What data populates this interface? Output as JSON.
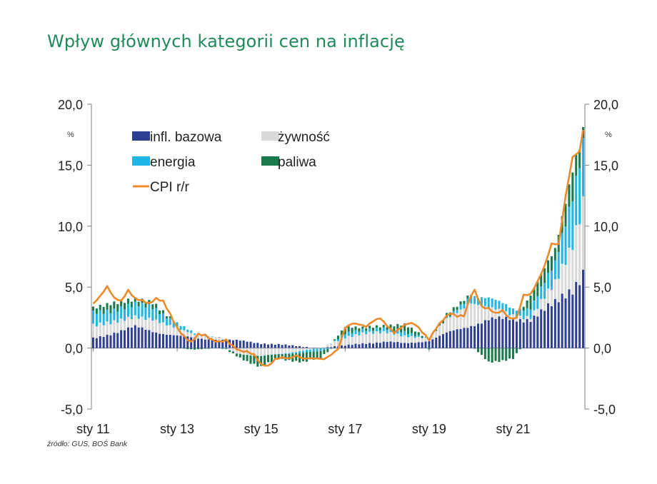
{
  "title": "Wpływ głównych kategorii cen na inflację",
  "source": "źródło: GUS, BOŚ Bank",
  "colors": {
    "core": "#2e3f94",
    "food": "#d9d9d9",
    "energy": "#1fb6e6",
    "fuel": "#1b7a4c",
    "cpi": "#ec8a2c",
    "axis": "#7f7f7f",
    "title": "#1f8a5a"
  },
  "chart_data": {
    "type": "bar",
    "stacked": true,
    "ylim": [
      -5,
      20
    ],
    "yticks": [
      "20,0",
      "15,0",
      "10,0",
      "5,0",
      "0,0",
      "-5,0"
    ],
    "ytick_values": [
      20,
      15,
      10,
      5,
      0,
      -5
    ],
    "yunit_left": "%",
    "yunit_right": "%",
    "xtick_labels": [
      "sty 11",
      "sty 13",
      "sty 15",
      "sty 17",
      "sty 19",
      "sty 21"
    ],
    "x_start": "2011-01",
    "x_end": "2022-09",
    "legend": {
      "core": "infl. bazowa",
      "food": "żywność",
      "energy": "energia",
      "fuel": "paliwa",
      "cpi": "CPI r/r"
    },
    "cpi_series": [
      [
        "2011-01",
        3.6
      ],
      [
        "2011-03",
        4.2
      ],
      [
        "2011-05",
        5.0
      ],
      [
        "2011-07",
        4.1
      ],
      [
        "2011-09",
        3.9
      ],
      [
        "2011-11",
        4.8
      ],
      [
        "2012-01",
        4.1
      ],
      [
        "2012-03",
        3.9
      ],
      [
        "2012-05",
        3.6
      ],
      [
        "2012-07",
        4.0
      ],
      [
        "2012-09",
        3.8
      ],
      [
        "2012-11",
        2.8
      ],
      [
        "2013-01",
        1.7
      ],
      [
        "2013-03",
        1.0
      ],
      [
        "2013-05",
        0.5
      ],
      [
        "2013-07",
        1.1
      ],
      [
        "2013-09",
        1.0
      ],
      [
        "2013-11",
        0.6
      ],
      [
        "2014-01",
        0.5
      ],
      [
        "2014-03",
        0.7
      ],
      [
        "2014-05",
        0.2
      ],
      [
        "2014-07",
        -0.2
      ],
      [
        "2014-09",
        -0.3
      ],
      [
        "2014-11",
        -0.6
      ],
      [
        "2015-01",
        -1.4
      ],
      [
        "2015-03",
        -1.5
      ],
      [
        "2015-05",
        -0.9
      ],
      [
        "2015-07",
        -0.7
      ],
      [
        "2015-09",
        -0.8
      ],
      [
        "2015-11",
        -0.6
      ],
      [
        "2016-01",
        -0.9
      ],
      [
        "2016-03",
        -0.9
      ],
      [
        "2016-05",
        -0.9
      ],
      [
        "2016-07",
        -0.9
      ],
      [
        "2016-09",
        -0.5
      ],
      [
        "2016-11",
        0.0
      ],
      [
        "2017-01",
        1.7
      ],
      [
        "2017-03",
        2.0
      ],
      [
        "2017-05",
        1.9
      ],
      [
        "2017-07",
        1.7
      ],
      [
        "2017-09",
        2.2
      ],
      [
        "2017-11",
        2.5
      ],
      [
        "2018-01",
        1.9
      ],
      [
        "2018-03",
        1.3
      ],
      [
        "2018-05",
        1.7
      ],
      [
        "2018-07",
        2.0
      ],
      [
        "2018-09",
        1.9
      ],
      [
        "2018-11",
        1.3
      ],
      [
        "2019-01",
        0.7
      ],
      [
        "2019-03",
        1.7
      ],
      [
        "2019-05",
        2.4
      ],
      [
        "2019-07",
        2.9
      ],
      [
        "2019-09",
        2.6
      ],
      [
        "2019-11",
        2.6
      ],
      [
        "2020-01",
        4.3
      ],
      [
        "2020-02",
        4.7
      ],
      [
        "2020-04",
        3.4
      ],
      [
        "2020-06",
        3.3
      ],
      [
        "2020-08",
        2.9
      ],
      [
        "2020-10",
        3.1
      ],
      [
        "2020-12",
        2.4
      ],
      [
        "2021-02",
        2.4
      ],
      [
        "2021-04",
        4.3
      ],
      [
        "2021-06",
        4.4
      ],
      [
        "2021-08",
        5.5
      ],
      [
        "2021-10",
        6.8
      ],
      [
        "2021-12",
        8.6
      ],
      [
        "2022-02",
        8.5
      ],
      [
        "2022-04",
        12.4
      ],
      [
        "2022-06",
        15.6
      ],
      [
        "2022-08",
        16.1
      ],
      [
        "2022-09",
        17.9
      ]
    ],
    "component_series": {
      "core": [
        [
          "2011-01",
          0.8
        ],
        [
          "2011-06",
          1.2
        ],
        [
          "2012-01",
          1.7
        ],
        [
          "2012-06",
          1.4
        ],
        [
          "2013-01",
          1.0
        ],
        [
          "2013-06",
          0.8
        ],
        [
          "2014-01",
          0.7
        ],
        [
          "2014-06",
          0.6
        ],
        [
          "2015-01",
          0.4
        ],
        [
          "2015-06",
          0.3
        ],
        [
          "2016-01",
          0.1
        ],
        [
          "2016-06",
          0.0
        ],
        [
          "2017-01",
          0.2
        ],
        [
          "2017-06",
          0.4
        ],
        [
          "2018-01",
          0.5
        ],
        [
          "2018-06",
          0.4
        ],
        [
          "2019-01",
          0.6
        ],
        [
          "2019-06",
          1.2
        ],
        [
          "2020-01",
          1.9
        ],
        [
          "2020-06",
          2.3
        ],
        [
          "2021-01",
          2.4
        ],
        [
          "2021-06",
          2.4
        ],
        [
          "2022-01",
          3.6
        ],
        [
          "2022-06",
          5.0
        ],
        [
          "2022-09",
          6.3
        ]
      ],
      "food": [
        [
          "2011-01",
          1.1
        ],
        [
          "2011-06",
          0.9
        ],
        [
          "2012-01",
          0.8
        ],
        [
          "2012-06",
          1.0
        ],
        [
          "2013-01",
          0.6
        ],
        [
          "2013-06",
          0.3
        ],
        [
          "2014-01",
          0.2
        ],
        [
          "2014-06",
          -0.4
        ],
        [
          "2015-01",
          -0.7
        ],
        [
          "2015-06",
          -0.5
        ],
        [
          "2016-01",
          -0.2
        ],
        [
          "2016-06",
          0.0
        ],
        [
          "2017-01",
          0.7
        ],
        [
          "2017-06",
          0.8
        ],
        [
          "2018-01",
          0.8
        ],
        [
          "2018-06",
          0.6
        ],
        [
          "2019-01",
          0.2
        ],
        [
          "2019-06",
          1.2
        ],
        [
          "2020-01",
          1.8
        ],
        [
          "2020-06",
          1.0
        ],
        [
          "2021-01",
          0.3
        ],
        [
          "2021-06",
          0.2
        ],
        [
          "2022-01",
          1.7
        ],
        [
          "2022-06",
          3.6
        ],
        [
          "2022-09",
          5.5
        ]
      ],
      "energy": [
        [
          "2011-01",
          1.0
        ],
        [
          "2011-06",
          1.0
        ],
        [
          "2012-01",
          1.0
        ],
        [
          "2012-06",
          1.0
        ],
        [
          "2013-01",
          0.4
        ],
        [
          "2013-06",
          0.1
        ],
        [
          "2014-01",
          0.0
        ],
        [
          "2014-06",
          0.0
        ],
        [
          "2015-01",
          0.0
        ],
        [
          "2015-06",
          0.0
        ],
        [
          "2016-01",
          -0.2
        ],
        [
          "2016-06",
          -0.2
        ],
        [
          "2017-01",
          0.3
        ],
        [
          "2017-06",
          0.3
        ],
        [
          "2018-01",
          0.3
        ],
        [
          "2018-06",
          0.3
        ],
        [
          "2019-01",
          0.0
        ],
        [
          "2019-06",
          0.0
        ],
        [
          "2020-01",
          0.6
        ],
        [
          "2020-06",
          0.8
        ],
        [
          "2021-01",
          0.5
        ],
        [
          "2021-06",
          0.8
        ],
        [
          "2022-01",
          1.5
        ],
        [
          "2022-06",
          4.0
        ],
        [
          "2022-09",
          5.2
        ]
      ],
      "fuel": [
        [
          "2011-01",
          0.4
        ],
        [
          "2011-06",
          0.6
        ],
        [
          "2012-01",
          0.4
        ],
        [
          "2012-06",
          0.4
        ],
        [
          "2013-01",
          0.0
        ],
        [
          "2013-06",
          -0.1
        ],
        [
          "2014-01",
          0.0
        ],
        [
          "2014-06",
          -0.2
        ],
        [
          "2015-01",
          -0.9
        ],
        [
          "2015-06",
          -0.4
        ],
        [
          "2016-01",
          -0.7
        ],
        [
          "2016-06",
          -0.6
        ],
        [
          "2017-01",
          0.6
        ],
        [
          "2017-06",
          0.2
        ],
        [
          "2018-01",
          0.2
        ],
        [
          "2018-06",
          0.7
        ],
        [
          "2019-01",
          -0.1
        ],
        [
          "2019-06",
          0.4
        ],
        [
          "2020-01",
          0.2
        ],
        [
          "2020-06",
          -1.2
        ],
        [
          "2021-01",
          -0.8
        ],
        [
          "2021-06",
          1.0
        ],
        [
          "2022-01",
          1.2
        ],
        [
          "2022-06",
          2.2
        ],
        [
          "2022-09",
          0.9
        ]
      ]
    }
  }
}
